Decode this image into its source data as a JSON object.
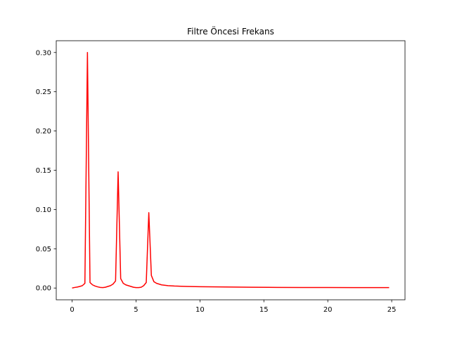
{
  "chart_data": {
    "type": "line",
    "title": "Filtre Öncesi Frekans",
    "xlabel": "",
    "ylabel": "",
    "xlim": [
      -1.24,
      26.04
    ],
    "ylim": [
      -0.015,
      0.315
    ],
    "x_ticks": [
      0,
      5,
      10,
      15,
      20,
      25
    ],
    "y_ticks": [
      0.0,
      0.05,
      0.1,
      0.15,
      0.2,
      0.25,
      0.3
    ],
    "x_tick_labels": [
      "0",
      "5",
      "10",
      "15",
      "20",
      "25"
    ],
    "y_tick_labels": [
      "0.00",
      "0.05",
      "0.10",
      "0.15",
      "0.20",
      "0.25",
      "0.30"
    ],
    "grid": false,
    "legend": "none",
    "series": [
      {
        "color": "#ff0000",
        "x": [
          0,
          0.2,
          0.4,
          0.6,
          0.8,
          1.0,
          1.2,
          1.4,
          1.6,
          1.8,
          2.0,
          2.2,
          2.4,
          2.6,
          2.8,
          3.0,
          3.2,
          3.4,
          3.6,
          3.8,
          4.0,
          4.2,
          4.4,
          4.6,
          4.8,
          5.0,
          5.2,
          5.4,
          5.6,
          5.8,
          6.0,
          6.2,
          6.4,
          6.6,
          6.8,
          7.0,
          7.5,
          8.0,
          9.0,
          10.0,
          12.0,
          14.0,
          16.0,
          18.0,
          20.0,
          22.0,
          24.8
        ],
        "values": [
          0.0,
          0.0007,
          0.0012,
          0.002,
          0.003,
          0.006,
          0.3,
          0.007,
          0.004,
          0.0025,
          0.0015,
          0.0008,
          0.0005,
          0.001,
          0.002,
          0.003,
          0.005,
          0.009,
          0.148,
          0.012,
          0.006,
          0.004,
          0.003,
          0.002,
          0.001,
          0.0005,
          0.0005,
          0.001,
          0.003,
          0.007,
          0.096,
          0.016,
          0.008,
          0.006,
          0.005,
          0.004,
          0.003,
          0.0025,
          0.002,
          0.0017,
          0.0013,
          0.001,
          0.0008,
          0.0007,
          0.0006,
          0.0005,
          0.0005
        ]
      }
    ]
  }
}
